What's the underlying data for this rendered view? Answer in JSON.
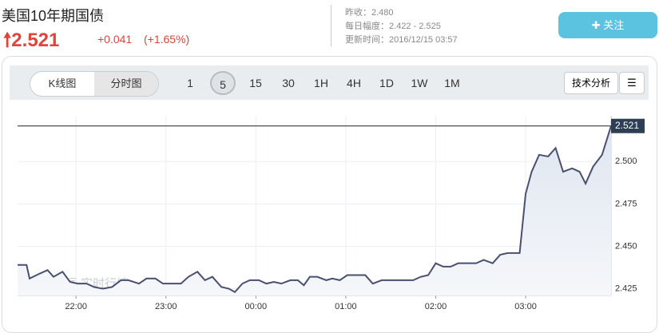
{
  "header": {
    "title": "美国10年期国债",
    "price": "2.521",
    "change": "+0.041",
    "change_pct": "(+1.65%)",
    "prev_close": "昨收：2.480",
    "daily_range": "每日幅度：2.422 - 2.525",
    "updated": "更新时间：2016/12/15 03:57",
    "follow_button": "关注"
  },
  "toolbar": {
    "chart_types": [
      "K线图",
      "分时图"
    ],
    "intervals": [
      "1",
      "5",
      "15",
      "30",
      "1H",
      "4H",
      "1D",
      "1W",
      "1M"
    ],
    "analysis": "技术分析"
  },
  "watermark": "华尔街见闻 实时行情",
  "chart_data": {
    "type": "line",
    "color": "#4a4f6e",
    "x": [
      "21:21",
      "21:27",
      "21:29",
      "21:36",
      "21:41",
      "21:45",
      "21:51",
      "21:56",
      "22:01",
      "22:07",
      "22:12",
      "22:18",
      "22:24",
      "22:30",
      "22:35",
      "22:42",
      "22:47",
      "22:53",
      "22:58",
      "23:03",
      "23:10",
      "23:15",
      "23:21",
      "23:26",
      "23:31",
      "23:37",
      "23:42",
      "23:46",
      "23:51",
      "23:56",
      "00:02",
      "00:07",
      "00:12",
      "00:17",
      "00:23",
      "00:28",
      "00:32",
      "00:36",
      "00:41",
      "00:47",
      "00:51",
      "00:56",
      "01:01",
      "01:08",
      "01:13",
      "01:18",
      "01:24",
      "01:29",
      "01:34",
      "01:39",
      "01:45",
      "01:50",
      "01:55",
      "02:00",
      "02:05",
      "02:10",
      "02:15",
      "02:22",
      "02:27",
      "02:32",
      "02:38",
      "02:43",
      "02:48",
      "02:52",
      "02:56",
      "03:00",
      "03:04",
      "03:09",
      "03:15",
      "03:20",
      "03:25",
      "03:31",
      "03:36",
      "03:40",
      "03:45",
      "03:51",
      "03:57"
    ],
    "values": [
      2.439,
      2.439,
      2.431,
      2.434,
      2.436,
      2.432,
      2.435,
      2.429,
      2.428,
      2.428,
      2.426,
      2.425,
      2.426,
      2.43,
      2.43,
      2.428,
      2.431,
      2.431,
      2.428,
      2.428,
      2.428,
      2.432,
      2.435,
      2.43,
      2.432,
      2.426,
      2.425,
      2.423,
      2.428,
      2.43,
      2.43,
      2.428,
      2.429,
      2.428,
      2.43,
      2.43,
      2.427,
      2.432,
      2.432,
      2.43,
      2.431,
      2.43,
      2.433,
      2.433,
      2.433,
      2.428,
      2.43,
      2.43,
      2.43,
      2.43,
      2.43,
      2.432,
      2.433,
      2.44,
      2.438,
      2.438,
      2.44,
      2.44,
      2.44,
      2.442,
      2.44,
      2.445,
      2.446,
      2.446,
      2.446,
      2.481,
      2.494,
      2.504,
      2.503,
      2.508,
      2.494,
      2.496,
      2.494,
      2.487,
      2.497,
      2.504,
      2.521
    ],
    "xlim": [
      "21:21",
      "03:57"
    ],
    "xticks": [
      "22:00",
      "23:00",
      "00:00",
      "01:00",
      "02:00",
      "03:00"
    ],
    "ylim": [
      2.421,
      2.527
    ],
    "yticks": [
      2.425,
      {
        "value": 2.45,
        "label": "2.450"
      },
      2.475,
      {
        "value": 2.5,
        "label": "2.500"
      }
    ],
    "grid": true
  }
}
